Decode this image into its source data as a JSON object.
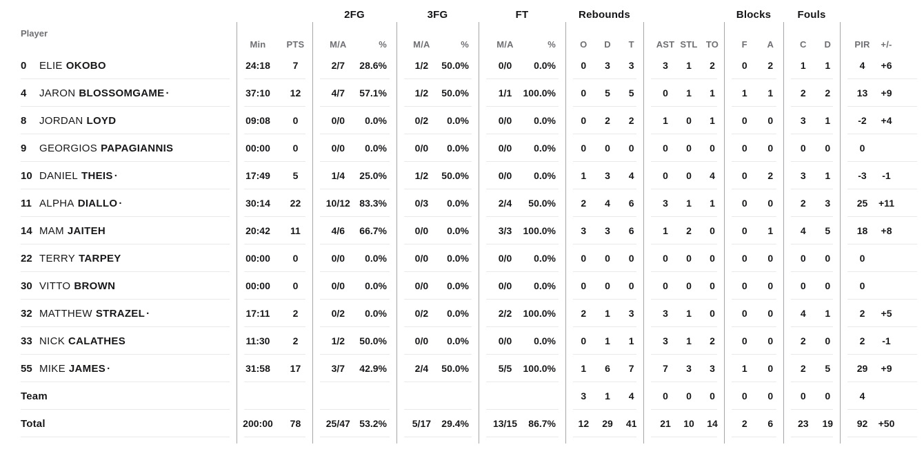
{
  "header": {
    "player": "Player",
    "groups": [
      {
        "id": "minpts",
        "label": ""
      },
      {
        "id": "fg2",
        "label": "2FG"
      },
      {
        "id": "fg3",
        "label": "3FG"
      },
      {
        "id": "ft",
        "label": "FT"
      },
      {
        "id": "rebounds",
        "label": "Rebounds"
      },
      {
        "id": "astto",
        "label": ""
      },
      {
        "id": "blocks",
        "label": "Blocks"
      },
      {
        "id": "fouls",
        "label": "Fouls"
      },
      {
        "id": "pir",
        "label": ""
      }
    ],
    "cols": {
      "min": "Min",
      "pts": "PTS",
      "ma": "M/A",
      "pct": "%",
      "reb_o": "O",
      "reb_d": "D",
      "reb_t": "T",
      "ast": "AST",
      "stl": "STL",
      "to": "TO",
      "blk_f": "F",
      "blk_a": "A",
      "foul_c": "C",
      "foul_d": "D",
      "pir": "PIR",
      "plus_minus": "+/-"
    }
  },
  "starter_mark": "·",
  "rows": [
    {
      "number": "0",
      "first": "ELIE",
      "last": "OKOBO",
      "starter": false,
      "min": "24:18",
      "pts": "7",
      "fg2_ma": "2/7",
      "fg2_pct": "28.6%",
      "fg3_ma": "1/2",
      "fg3_pct": "50.0%",
      "ft_ma": "0/0",
      "ft_pct": "0.0%",
      "reb_o": "0",
      "reb_d": "3",
      "reb_t": "3",
      "ast": "3",
      "stl": "1",
      "to": "2",
      "blk_f": "0",
      "blk_a": "2",
      "foul_c": "1",
      "foul_d": "1",
      "pir": "4",
      "pm": "+6"
    },
    {
      "number": "4",
      "first": "JARON",
      "last": "BLOSSOMGAME",
      "starter": true,
      "min": "37:10",
      "pts": "12",
      "fg2_ma": "4/7",
      "fg2_pct": "57.1%",
      "fg3_ma": "1/2",
      "fg3_pct": "50.0%",
      "ft_ma": "1/1",
      "ft_pct": "100.0%",
      "reb_o": "0",
      "reb_d": "5",
      "reb_t": "5",
      "ast": "0",
      "stl": "1",
      "to": "1",
      "blk_f": "1",
      "blk_a": "1",
      "foul_c": "2",
      "foul_d": "2",
      "pir": "13",
      "pm": "+9"
    },
    {
      "number": "8",
      "first": "JORDAN",
      "last": "LOYD",
      "starter": false,
      "min": "09:08",
      "pts": "0",
      "fg2_ma": "0/0",
      "fg2_pct": "0.0%",
      "fg3_ma": "0/2",
      "fg3_pct": "0.0%",
      "ft_ma": "0/0",
      "ft_pct": "0.0%",
      "reb_o": "0",
      "reb_d": "2",
      "reb_t": "2",
      "ast": "1",
      "stl": "0",
      "to": "1",
      "blk_f": "0",
      "blk_a": "0",
      "foul_c": "3",
      "foul_d": "1",
      "pir": "-2",
      "pm": "+4"
    },
    {
      "number": "9",
      "first": "GEORGIOS",
      "last": "PAPAGIANNIS",
      "starter": false,
      "min": "00:00",
      "pts": "0",
      "fg2_ma": "0/0",
      "fg2_pct": "0.0%",
      "fg3_ma": "0/0",
      "fg3_pct": "0.0%",
      "ft_ma": "0/0",
      "ft_pct": "0.0%",
      "reb_o": "0",
      "reb_d": "0",
      "reb_t": "0",
      "ast": "0",
      "stl": "0",
      "to": "0",
      "blk_f": "0",
      "blk_a": "0",
      "foul_c": "0",
      "foul_d": "0",
      "pir": "0",
      "pm": ""
    },
    {
      "number": "10",
      "first": "DANIEL",
      "last": "THEIS",
      "starter": true,
      "min": "17:49",
      "pts": "5",
      "fg2_ma": "1/4",
      "fg2_pct": "25.0%",
      "fg3_ma": "1/2",
      "fg3_pct": "50.0%",
      "ft_ma": "0/0",
      "ft_pct": "0.0%",
      "reb_o": "1",
      "reb_d": "3",
      "reb_t": "4",
      "ast": "0",
      "stl": "0",
      "to": "4",
      "blk_f": "0",
      "blk_a": "2",
      "foul_c": "3",
      "foul_d": "1",
      "pir": "-3",
      "pm": "-1"
    },
    {
      "number": "11",
      "first": "ALPHA",
      "last": "DIALLO",
      "starter": true,
      "min": "30:14",
      "pts": "22",
      "fg2_ma": "10/12",
      "fg2_pct": "83.3%",
      "fg3_ma": "0/3",
      "fg3_pct": "0.0%",
      "ft_ma": "2/4",
      "ft_pct": "50.0%",
      "reb_o": "2",
      "reb_d": "4",
      "reb_t": "6",
      "ast": "3",
      "stl": "1",
      "to": "1",
      "blk_f": "0",
      "blk_a": "0",
      "foul_c": "2",
      "foul_d": "3",
      "pir": "25",
      "pm": "+11"
    },
    {
      "number": "14",
      "first": "MAM",
      "last": "JAITEH",
      "starter": false,
      "min": "20:42",
      "pts": "11",
      "fg2_ma": "4/6",
      "fg2_pct": "66.7%",
      "fg3_ma": "0/0",
      "fg3_pct": "0.0%",
      "ft_ma": "3/3",
      "ft_pct": "100.0%",
      "reb_o": "3",
      "reb_d": "3",
      "reb_t": "6",
      "ast": "1",
      "stl": "2",
      "to": "0",
      "blk_f": "0",
      "blk_a": "1",
      "foul_c": "4",
      "foul_d": "5",
      "pir": "18",
      "pm": "+8"
    },
    {
      "number": "22",
      "first": "TERRY",
      "last": "TARPEY",
      "starter": false,
      "min": "00:00",
      "pts": "0",
      "fg2_ma": "0/0",
      "fg2_pct": "0.0%",
      "fg3_ma": "0/0",
      "fg3_pct": "0.0%",
      "ft_ma": "0/0",
      "ft_pct": "0.0%",
      "reb_o": "0",
      "reb_d": "0",
      "reb_t": "0",
      "ast": "0",
      "stl": "0",
      "to": "0",
      "blk_f": "0",
      "blk_a": "0",
      "foul_c": "0",
      "foul_d": "0",
      "pir": "0",
      "pm": ""
    },
    {
      "number": "30",
      "first": "VITTO",
      "last": "BROWN",
      "starter": false,
      "min": "00:00",
      "pts": "0",
      "fg2_ma": "0/0",
      "fg2_pct": "0.0%",
      "fg3_ma": "0/0",
      "fg3_pct": "0.0%",
      "ft_ma": "0/0",
      "ft_pct": "0.0%",
      "reb_o": "0",
      "reb_d": "0",
      "reb_t": "0",
      "ast": "0",
      "stl": "0",
      "to": "0",
      "blk_f": "0",
      "blk_a": "0",
      "foul_c": "0",
      "foul_d": "0",
      "pir": "0",
      "pm": ""
    },
    {
      "number": "32",
      "first": "MATTHEW",
      "last": "STRAZEL",
      "starter": true,
      "min": "17:11",
      "pts": "2",
      "fg2_ma": "0/2",
      "fg2_pct": "0.0%",
      "fg3_ma": "0/2",
      "fg3_pct": "0.0%",
      "ft_ma": "2/2",
      "ft_pct": "100.0%",
      "reb_o": "2",
      "reb_d": "1",
      "reb_t": "3",
      "ast": "3",
      "stl": "1",
      "to": "0",
      "blk_f": "0",
      "blk_a": "0",
      "foul_c": "4",
      "foul_d": "1",
      "pir": "2",
      "pm": "+5"
    },
    {
      "number": "33",
      "first": "NICK",
      "last": "CALATHES",
      "starter": false,
      "min": "11:30",
      "pts": "2",
      "fg2_ma": "1/2",
      "fg2_pct": "50.0%",
      "fg3_ma": "0/0",
      "fg3_pct": "0.0%",
      "ft_ma": "0/0",
      "ft_pct": "0.0%",
      "reb_o": "0",
      "reb_d": "1",
      "reb_t": "1",
      "ast": "3",
      "stl": "1",
      "to": "2",
      "blk_f": "0",
      "blk_a": "0",
      "foul_c": "2",
      "foul_d": "0",
      "pir": "2",
      "pm": "-1"
    },
    {
      "number": "55",
      "first": "MIKE",
      "last": "JAMES",
      "starter": true,
      "min": "31:58",
      "pts": "17",
      "fg2_ma": "3/7",
      "fg2_pct": "42.9%",
      "fg3_ma": "2/4",
      "fg3_pct": "50.0%",
      "ft_ma": "5/5",
      "ft_pct": "100.0%",
      "reb_o": "1",
      "reb_d": "6",
      "reb_t": "7",
      "ast": "7",
      "stl": "3",
      "to": "3",
      "blk_f": "1",
      "blk_a": "0",
      "foul_c": "2",
      "foul_d": "5",
      "pir": "29",
      "pm": "+9"
    },
    {
      "label": "Team",
      "min": "",
      "pts": "",
      "fg2_ma": "",
      "fg2_pct": "",
      "fg3_ma": "",
      "fg3_pct": "",
      "ft_ma": "",
      "ft_pct": "",
      "reb_o": "3",
      "reb_d": "1",
      "reb_t": "4",
      "ast": "0",
      "stl": "0",
      "to": "0",
      "blk_f": "0",
      "blk_a": "0",
      "foul_c": "0",
      "foul_d": "0",
      "pir": "4",
      "pm": ""
    },
    {
      "label": "Total",
      "min": "200:00",
      "pts": "78",
      "fg2_ma": "25/47",
      "fg2_pct": "53.2%",
      "fg3_ma": "5/17",
      "fg3_pct": "29.4%",
      "ft_ma": "13/15",
      "ft_pct": "86.7%",
      "reb_o": "12",
      "reb_d": "29",
      "reb_t": "41",
      "ast": "21",
      "stl": "10",
      "to": "14",
      "blk_f": "2",
      "blk_a": "6",
      "foul_c": "23",
      "foul_d": "19",
      "pir": "92",
      "pm": "+50"
    }
  ]
}
